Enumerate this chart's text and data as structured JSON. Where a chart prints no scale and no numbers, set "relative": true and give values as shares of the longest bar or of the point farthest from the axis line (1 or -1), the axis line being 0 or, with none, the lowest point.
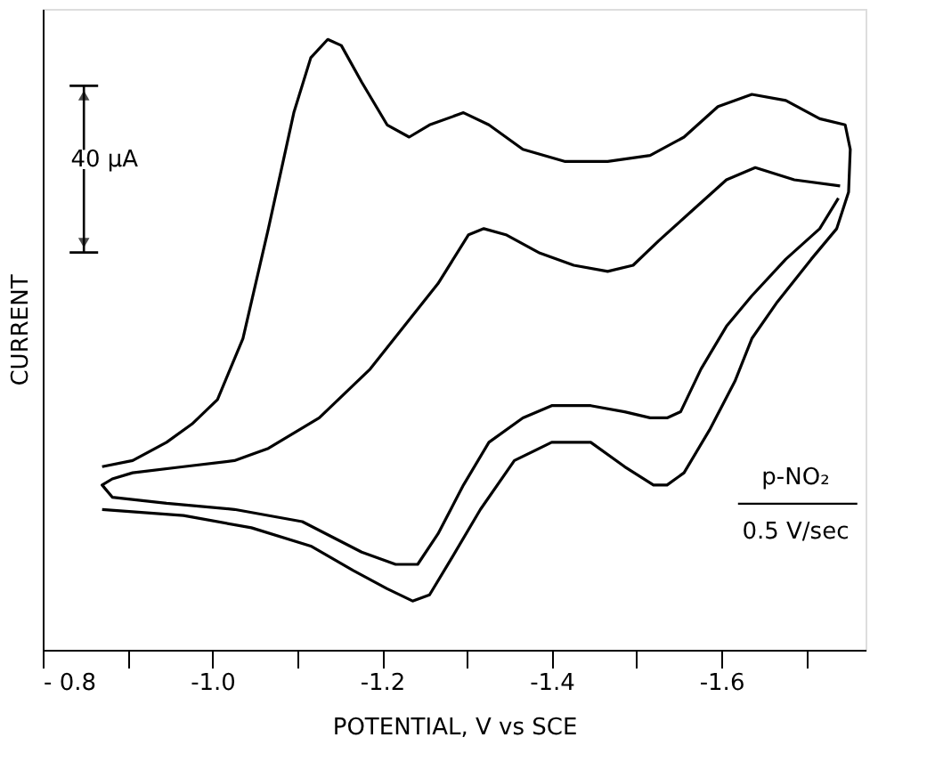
{
  "chart_data": {
    "type": "line",
    "relative": true,
    "xlabel": "POTENTIAL, V vs SCE",
    "ylabel": "CURRENT",
    "xlim": [
      -0.8,
      -1.77
    ],
    "xticks": [
      {
        "value": -0.8,
        "label": "- 0.8"
      },
      {
        "value": -0.9,
        "label": null
      },
      {
        "value": -1.0,
        "label": "-1.0"
      },
      {
        "value": -1.1,
        "label": null
      },
      {
        "value": -1.2,
        "label": "-1.2"
      },
      {
        "value": -1.3,
        "label": null
      },
      {
        "value": -1.4,
        "label": "-1.4"
      },
      {
        "value": -1.5,
        "label": null
      },
      {
        "value": -1.6,
        "label": "-1.6"
      },
      {
        "value": -1.7,
        "label": null
      }
    ],
    "grid": false,
    "marker": "none",
    "line_style": "solid",
    "annotations": [
      "40 μA",
      "p-NO₂",
      "0.5 V/sec"
    ],
    "series": [
      {
        "color": "#000000",
        "x": [
          -0.87,
          -0.906,
          -0.946,
          -0.976,
          -1.006,
          -1.036,
          -1.066,
          -1.096,
          -1.116,
          -1.136,
          -1.152,
          -1.176,
          -1.206,
          -1.232,
          -1.256,
          -1.296,
          -1.326,
          -1.366,
          -1.416,
          -1.466,
          -1.516,
          -1.556,
          -1.596,
          -1.636,
          -1.676,
          -1.716,
          -1.746,
          -1.752,
          -1.75,
          -1.736,
          -1.706,
          -1.666,
          -1.636,
          -1.616,
          -1.586,
          -1.556,
          -1.536,
          -1.52,
          -1.486,
          -1.446,
          -1.4,
          -1.356,
          -1.316,
          -1.282,
          -1.256,
          -1.236,
          -1.206,
          -1.166,
          -1.116,
          -1.046,
          -0.966,
          -0.87
        ],
        "values": [
          0.3,
          0.31,
          0.34,
          0.37,
          0.41,
          0.51,
          0.69,
          0.88,
          0.97,
          1.0,
          0.99,
          0.93,
          0.86,
          0.84,
          0.86,
          0.88,
          0.86,
          0.82,
          0.8,
          0.8,
          0.81,
          0.84,
          0.89,
          0.91,
          0.9,
          0.87,
          0.86,
          0.82,
          0.75,
          0.69,
          0.64,
          0.57,
          0.51,
          0.44,
          0.36,
          0.29,
          0.27,
          0.27,
          0.3,
          0.34,
          0.34,
          0.31,
          0.23,
          0.15,
          0.09,
          0.08,
          0.1,
          0.13,
          0.17,
          0.2,
          0.22,
          0.23
        ]
      },
      {
        "color": "#000000",
        "x": [
          -1.74,
          -1.686,
          -1.64,
          -1.606,
          -1.566,
          -1.526,
          -1.496,
          -1.466,
          -1.426,
          -1.386,
          -1.346,
          -1.32,
          -1.302,
          -1.266,
          -1.226,
          -1.186,
          -1.126,
          -1.066,
          -1.026,
          -0.966,
          -0.906,
          -0.882,
          -0.87,
          -0.882,
          -0.946,
          -1.026,
          -1.106,
          -1.176,
          -1.216,
          -1.242,
          -1.266,
          -1.296,
          -1.326,
          -1.366,
          -1.4,
          -1.446,
          -1.486,
          -1.516,
          -1.536,
          -1.552,
          -1.576,
          -1.606,
          -1.636,
          -1.676,
          -1.716,
          -1.738
        ],
        "values": [
          0.76,
          0.77,
          0.79,
          0.77,
          0.72,
          0.67,
          0.63,
          0.62,
          0.63,
          0.65,
          0.68,
          0.69,
          0.68,
          0.6,
          0.53,
          0.46,
          0.38,
          0.33,
          0.31,
          0.3,
          0.29,
          0.28,
          0.27,
          0.25,
          0.24,
          0.23,
          0.21,
          0.16,
          0.14,
          0.14,
          0.19,
          0.27,
          0.34,
          0.38,
          0.4,
          0.4,
          0.39,
          0.38,
          0.38,
          0.39,
          0.46,
          0.53,
          0.58,
          0.64,
          0.69,
          0.74
        ]
      }
    ]
  }
}
